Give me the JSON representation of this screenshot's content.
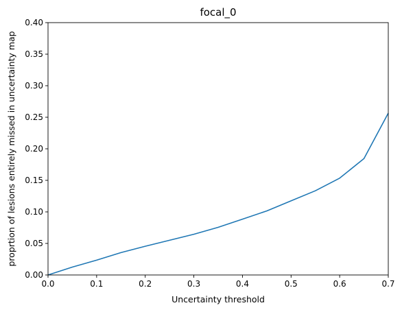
{
  "chart_data": {
    "type": "line",
    "title": "focal_0",
    "xlabel": "Uncertainty threshold",
    "ylabel": "proprtion of lesions entirely missed in uncertainty map",
    "xlim": [
      0.0,
      0.7
    ],
    "ylim": [
      0.0,
      0.4
    ],
    "xticks": [
      "0.0",
      "0.1",
      "0.2",
      "0.3",
      "0.4",
      "0.5",
      "0.6",
      "0.7"
    ],
    "yticks": [
      "0.00",
      "0.05",
      "0.10",
      "0.15",
      "0.20",
      "0.25",
      "0.30",
      "0.35",
      "0.40"
    ],
    "grid": false,
    "series": [
      {
        "color": "#1f77b4",
        "x": [
          0.0,
          0.05,
          0.1,
          0.15,
          0.2,
          0.25,
          0.3,
          0.35,
          0.4,
          0.45,
          0.5,
          0.55,
          0.6,
          0.65,
          0.7
        ],
        "y": [
          0.0,
          0.0125,
          0.0235,
          0.0355,
          0.0455,
          0.055,
          0.0645,
          0.0755,
          0.0885,
          0.1015,
          0.1175,
          0.1335,
          0.1535,
          0.1845,
          0.2565
        ]
      }
    ]
  }
}
